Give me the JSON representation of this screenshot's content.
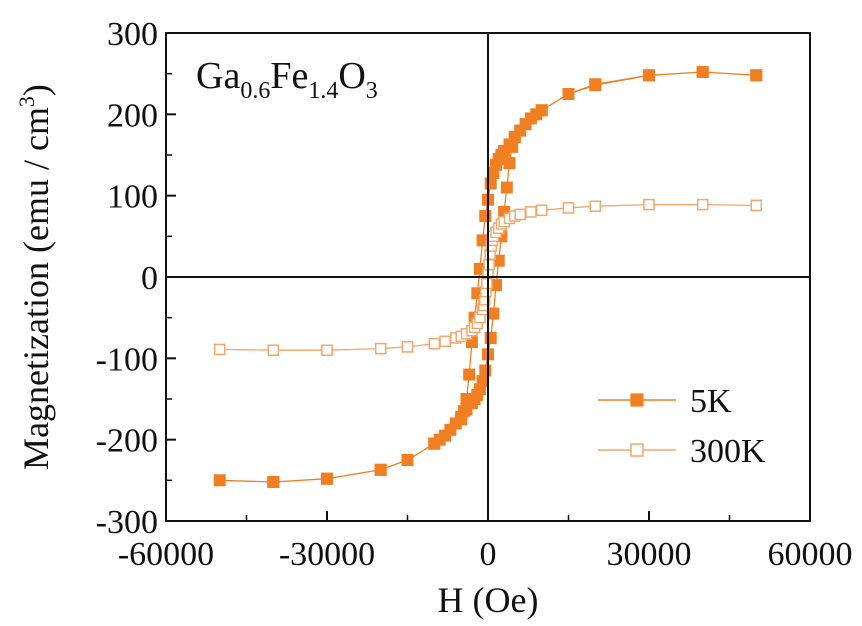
{
  "chart_data": {
    "type": "scatter",
    "annotation": {
      "parts": [
        {
          "text": "Ga",
          "sub": false
        },
        {
          "text": "0.6",
          "sub": true
        },
        {
          "text": "Fe",
          "sub": false
        },
        {
          "text": "1.4",
          "sub": true
        },
        {
          "text": "O",
          "sub": false
        },
        {
          "text": "3",
          "sub": true
        }
      ]
    },
    "xlabel": "H (Oe)",
    "ylabel": "Magnetization (emu / cm",
    "ylabel_sup": "3",
    "ylabel_end": ")",
    "xlim": [
      -60000,
      60000
    ],
    "ylim": [
      -300,
      300
    ],
    "xticks": [
      -60000,
      -30000,
      0,
      30000,
      60000
    ],
    "xtick_labels": [
      "-60000",
      "-30000",
      "0",
      "30000",
      "60000"
    ],
    "yticks": [
      -300,
      -200,
      -100,
      0,
      100,
      200,
      300
    ],
    "ytick_labels": [
      "-300",
      "-200",
      "-100",
      "0",
      "100",
      "200",
      "300"
    ],
    "grid": false,
    "legend_position": "bottom-right",
    "series": [
      {
        "name": "5K",
        "color": "#F07F22",
        "marker": "filled-square",
        "x": [
          50000,
          40000,
          30000,
          20000,
          15000,
          10000,
          9000,
          8000,
          7000,
          6000,
          5000,
          4000,
          3000,
          2500,
          2000,
          1500,
          1000,
          500,
          0,
          -500,
          -1000,
          -1500,
          -2000,
          -2500,
          -3000,
          -3500,
          -4000,
          -4500,
          -5000,
          -10000,
          -15000,
          -20000,
          -30000,
          -40000,
          -50000,
          -40000,
          -30000,
          -20000,
          -15000,
          -10000,
          -9000,
          -8000,
          -7000,
          -6000,
          -5000,
          -4000,
          -3000,
          -2500,
          -2000,
          -1500,
          -1000,
          -500,
          0,
          500,
          1000,
          1500,
          2000,
          2500,
          3000,
          3500,
          4000,
          4500,
          5000,
          10000,
          15000,
          20000,
          30000,
          40000,
          50000
        ],
        "y": [
          248,
          252,
          248,
          236,
          225,
          205,
          200,
          195,
          188,
          180,
          172,
          163,
          155,
          150,
          145,
          138,
          128,
          115,
          95,
          75,
          45,
          10,
          -20,
          -50,
          -80,
          -120,
          -150,
          -165,
          -175,
          -205,
          -225,
          -237,
          -248,
          -252,
          -250,
          -252,
          -248,
          -237,
          -225,
          -205,
          -200,
          -195,
          -188,
          -180,
          -172,
          -163,
          -155,
          -150,
          -145,
          -138,
          -128,
          -115,
          -95,
          -75,
          -45,
          -10,
          20,
          50,
          80,
          110,
          140,
          160,
          172,
          205,
          225,
          237,
          248,
          252,
          248
        ]
      },
      {
        "name": "300K",
        "color": "#F2A66A",
        "marker": "open-square",
        "x": [
          50000,
          40000,
          30000,
          20000,
          15000,
          10000,
          8000,
          6000,
          5000,
          4000,
          3000,
          2500,
          2000,
          1500,
          1000,
          800,
          600,
          400,
          200,
          0,
          -200,
          -400,
          -600,
          -800,
          -1000,
          -1500,
          -2000,
          -2500,
          -3000,
          -4000,
          -5000,
          -6000,
          -8000,
          -10000,
          -15000,
          -20000,
          -30000,
          -40000,
          -50000,
          -40000,
          -30000,
          -20000,
          -15000,
          -10000,
          -8000,
          -6000,
          -5000,
          -4000,
          -3000,
          -2500,
          -2000,
          -1500,
          -1000,
          -800,
          -600,
          -400,
          -200,
          0,
          200,
          400,
          600,
          800,
          1000,
          1500,
          2000,
          2500,
          3000,
          4000,
          5000,
          6000,
          8000,
          10000,
          15000,
          20000,
          30000,
          40000,
          50000
        ],
        "y": [
          88,
          89,
          89,
          87,
          85,
          82,
          80,
          77,
          75,
          72,
          68,
          65,
          60,
          55,
          50,
          45,
          38,
          28,
          15,
          5,
          -8,
          -18,
          -28,
          -35,
          -40,
          -50,
          -57,
          -62,
          -66,
          -70,
          -73,
          -75,
          -79,
          -82,
          -86,
          -88,
          -90,
          -90,
          -89,
          -90,
          -90,
          -88,
          -86,
          -82,
          -79,
          -75,
          -73,
          -70,
          -66,
          -62,
          -57,
          -50,
          -40,
          -35,
          -28,
          -18,
          -8,
          5,
          15,
          28,
          38,
          45,
          50,
          55,
          60,
          65,
          68,
          72,
          75,
          77,
          80,
          82,
          85,
          87,
          89,
          89,
          88
        ]
      }
    ]
  }
}
